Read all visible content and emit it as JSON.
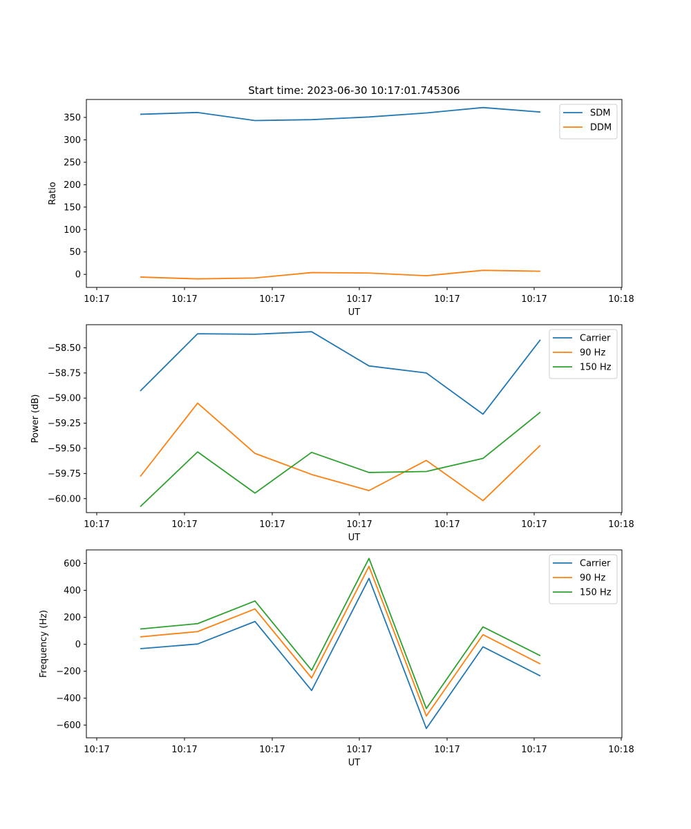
{
  "figure_title": "Start time: 2023-06-30 10:17:01.745306",
  "colors": {
    "blue": "#1f77b4",
    "orange": "#ff7f0e",
    "green": "#2ca02c"
  },
  "chart_data": [
    {
      "type": "line",
      "title": "Start time: 2023-06-30 10:17:01.745306",
      "xlabel": "UT",
      "ylabel": "Ratio",
      "x_tick_labels": [
        "10:17",
        "10:17",
        "10:17",
        "10:17",
        "10:17",
        "10:17",
        "10:18"
      ],
      "y_ticks": [
        0,
        50,
        100,
        150,
        200,
        250,
        300,
        350
      ],
      "y_tick_labels": [
        "0",
        "50",
        "100",
        "150",
        "200",
        "250",
        "300",
        "350"
      ],
      "ylim": [
        -29,
        390
      ],
      "legend_position": "upper right",
      "grid": false,
      "series": [
        {
          "name": "SDM",
          "color": "#1f77b4",
          "values": [
            357,
            361,
            343,
            345,
            351,
            360,
            372,
            362
          ]
        },
        {
          "name": "DDM",
          "color": "#ff7f0e",
          "values": [
            -6,
            -10,
            -8,
            4,
            3,
            -3,
            9,
            7
          ]
        }
      ]
    },
    {
      "type": "line",
      "title": "",
      "xlabel": "UT",
      "ylabel": "Power (dB)",
      "x_tick_labels": [
        "10:17",
        "10:17",
        "10:17",
        "10:17",
        "10:17",
        "10:17",
        "10:18"
      ],
      "y_ticks": [
        -60.0,
        -59.75,
        -59.5,
        -59.25,
        -59.0,
        -58.75,
        -58.5
      ],
      "y_tick_labels": [
        "−60.00",
        "−59.75",
        "−59.50",
        "−59.25",
        "−59.00",
        "−58.75",
        "−58.50"
      ],
      "ylim": [
        -60.139,
        -58.27
      ],
      "legend_position": "upper right",
      "grid": false,
      "series": [
        {
          "name": "Carrier",
          "color": "#1f77b4",
          "values": [
            -58.93,
            -58.36,
            -58.365,
            -58.34,
            -58.68,
            -58.75,
            -59.16,
            -58.42
          ]
        },
        {
          "name": "90 Hz",
          "color": "#ff7f0e",
          "values": [
            -59.78,
            -59.05,
            -59.55,
            -59.76,
            -59.92,
            -59.62,
            -60.02,
            -59.47
          ]
        },
        {
          "name": "150 Hz",
          "color": "#2ca02c",
          "values": [
            -60.08,
            -59.535,
            -59.945,
            -59.54,
            -59.74,
            -59.73,
            -59.6,
            -59.14
          ]
        }
      ]
    },
    {
      "type": "line",
      "title": "",
      "xlabel": "UT",
      "ylabel": "Frequency (Hz)",
      "x_tick_labels": [
        "10:17",
        "10:17",
        "10:17",
        "10:17",
        "10:17",
        "10:17",
        "10:18"
      ],
      "y_ticks": [
        -600,
        -400,
        -200,
        0,
        200,
        400,
        600
      ],
      "y_tick_labels": [
        "−600",
        "−400",
        "−200",
        "0",
        "200",
        "400",
        "600"
      ],
      "ylim": [
        -694,
        700
      ],
      "legend_position": "upper right",
      "grid": false,
      "series": [
        {
          "name": "Carrier",
          "color": "#1f77b4",
          "values": [
            -33,
            2,
            169,
            -343,
            489,
            -625,
            -19,
            -235
          ]
        },
        {
          "name": "90 Hz",
          "color": "#ff7f0e",
          "values": [
            55,
            94,
            262,
            -250,
            578,
            -532,
            71,
            -146
          ]
        },
        {
          "name": "150 Hz",
          "color": "#2ca02c",
          "values": [
            113,
            153,
            321,
            -193,
            637,
            -477,
            129,
            -85
          ]
        }
      ]
    }
  ]
}
